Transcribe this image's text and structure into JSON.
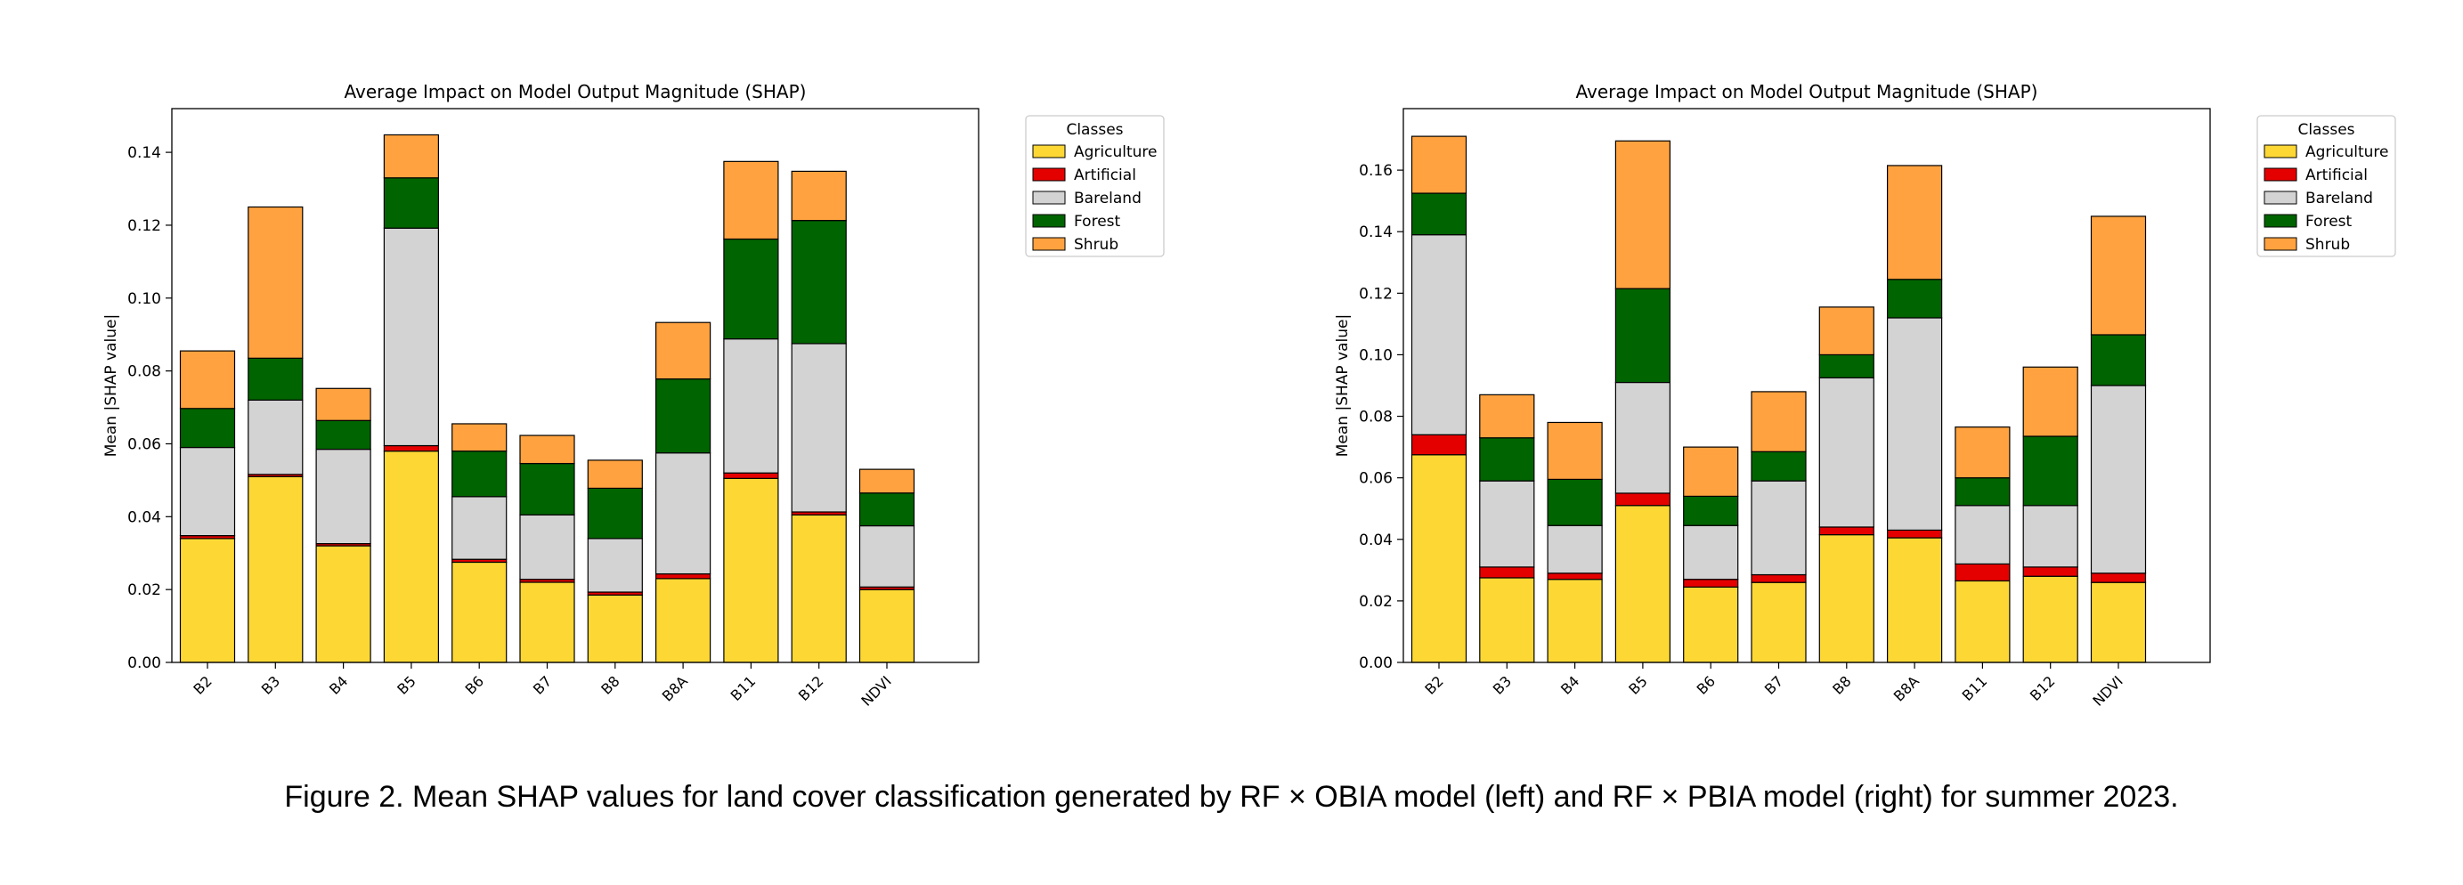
{
  "chart_data": [
    {
      "type": "bar",
      "stacked": true,
      "title": "Average Impact on Model Output Magnitude (SHAP)",
      "xlabel": "",
      "ylabel": "Mean |SHAP value|",
      "categories": [
        "B2",
        "B3",
        "B4",
        "B5",
        "B6",
        "B7",
        "B8",
        "B8A",
        "B11",
        "B12",
        "NDVI"
      ],
      "ylim": [
        0,
        0.152
      ],
      "yticks": [
        "0.00",
        "0.02",
        "0.04",
        "0.06",
        "0.08",
        "0.10",
        "0.12",
        "0.14"
      ],
      "grid": false,
      "legend": {
        "title": "Classes",
        "placement": "outside-top-right"
      },
      "series": [
        {
          "name": "Agriculture",
          "color": "#FDD835",
          "values": [
            0.034,
            0.051,
            0.032,
            0.058,
            0.0275,
            0.022,
            0.0185,
            0.023,
            0.0505,
            0.0405,
            0.02
          ]
        },
        {
          "name": "Artificial",
          "color": "#E50000",
          "values": [
            0.0008,
            0.0006,
            0.0006,
            0.0015,
            0.0008,
            0.0008,
            0.0008,
            0.0013,
            0.0015,
            0.0008,
            0.0007
          ]
        },
        {
          "name": "Bareland",
          "color": "#D3D3D3",
          "values": [
            0.0242,
            0.0204,
            0.0259,
            0.0597,
            0.0172,
            0.0177,
            0.0147,
            0.0332,
            0.0368,
            0.0462,
            0.0168
          ]
        },
        {
          "name": "Forest",
          "color": "#006400",
          "values": [
            0.0107,
            0.0115,
            0.0079,
            0.0138,
            0.0125,
            0.0141,
            0.0138,
            0.0203,
            0.0274,
            0.0338,
            0.009
          ]
        },
        {
          "name": "Shrub",
          "color": "#FFA23F",
          "values": [
            0.0158,
            0.0415,
            0.0088,
            0.0118,
            0.0075,
            0.0077,
            0.0077,
            0.0155,
            0.0213,
            0.0135,
            0.0065
          ]
        }
      ]
    },
    {
      "type": "bar",
      "stacked": true,
      "title": "Average Impact on Model Output Magnitude (SHAP)",
      "xlabel": "",
      "ylabel": "Mean |SHAP value|",
      "categories": [
        "B2",
        "B3",
        "B4",
        "B5",
        "B6",
        "B7",
        "B8",
        "B8A",
        "B11",
        "B12",
        "NDVI"
      ],
      "ylim": [
        0,
        0.18
      ],
      "yticks": [
        "0.00",
        "0.02",
        "0.04",
        "0.06",
        "0.08",
        "0.10",
        "0.12",
        "0.14",
        "0.16"
      ],
      "grid": false,
      "legend": {
        "title": "Classes",
        "placement": "outside-top-right"
      },
      "series": [
        {
          "name": "Agriculture",
          "color": "#FDD835",
          "values": [
            0.0675,
            0.0275,
            0.027,
            0.051,
            0.0245,
            0.026,
            0.0415,
            0.0405,
            0.0265,
            0.028,
            0.026
          ]
        },
        {
          "name": "Artificial",
          "color": "#E50000",
          "values": [
            0.0065,
            0.0035,
            0.002,
            0.004,
            0.0025,
            0.0025,
            0.0025,
            0.0025,
            0.0055,
            0.003,
            0.003
          ]
        },
        {
          "name": "Bareland",
          "color": "#D3D3D3",
          "values": [
            0.065,
            0.028,
            0.0155,
            0.036,
            0.0175,
            0.0305,
            0.0485,
            0.069,
            0.019,
            0.02,
            0.061
          ]
        },
        {
          "name": "Forest",
          "color": "#006400",
          "values": [
            0.0135,
            0.014,
            0.015,
            0.0305,
            0.0095,
            0.0095,
            0.0075,
            0.0125,
            0.009,
            0.0225,
            0.0165
          ]
        },
        {
          "name": "Shrub",
          "color": "#FFA23F",
          "values": [
            0.0185,
            0.014,
            0.0185,
            0.048,
            0.016,
            0.0195,
            0.0155,
            0.037,
            0.0165,
            0.0225,
            0.0385
          ]
        }
      ]
    }
  ],
  "caption": "Figure 2. Mean SHAP values for land cover classification generated by RF × OBIA model (left) and RF × PBIA model (right) for summer 2023."
}
